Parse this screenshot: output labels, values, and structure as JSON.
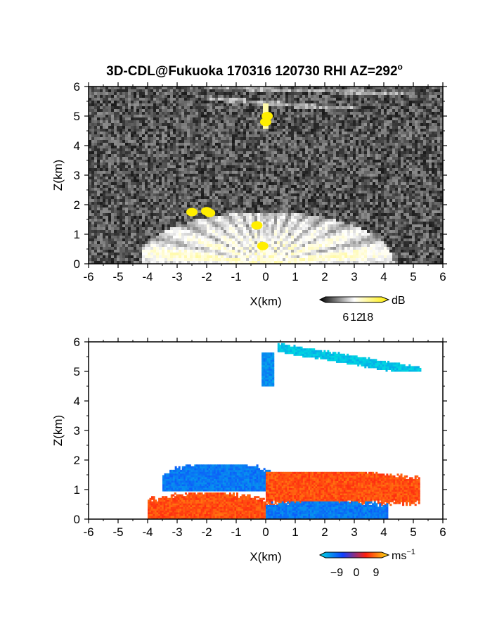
{
  "title_main": "3D-CDL@Fukuoka 170316 120730 RHI AZ=292",
  "title_sup": "o",
  "chart_data": [
    {
      "type": "heatmap",
      "field": "reflectivity",
      "title": "3D-CDL@Fukuoka 170316 120730 RHI AZ=292°",
      "xlabel": "X(km)",
      "ylabel": "Z(km)",
      "xlim": [
        -6,
        6
      ],
      "ylim": [
        0,
        6
      ],
      "x_ticks": [
        "-6",
        "-5",
        "-4",
        "-3",
        "-2",
        "-1",
        "0",
        "1",
        "2",
        "3",
        "4",
        "5",
        "6"
      ],
      "y_ticks": [
        "0",
        "1",
        "2",
        "3",
        "4",
        "5",
        "6"
      ],
      "colorbar": {
        "unit": "dB",
        "ticks": [
          "6",
          "12",
          "18"
        ],
        "range": [
          0,
          21
        ],
        "colors": [
          "#000000",
          "#ffffff",
          "#ffee00"
        ]
      },
      "features": [
        {
          "kind": "noise-background",
          "level_db": 2
        },
        {
          "kind": "fan-echo",
          "x_range": [
            -4.2,
            4.4
          ],
          "z_top": 1.65,
          "level_db": 12
        },
        {
          "kind": "strong-echo",
          "points": [
            [
              -2.5,
              1.75
            ],
            [
              -2.0,
              1.78
            ],
            [
              -1.9,
              1.72
            ],
            [
              0.0,
              4.8
            ],
            [
              0.05,
              5.0
            ],
            [
              -0.3,
              1.3
            ],
            [
              -0.1,
              0.6
            ]
          ],
          "level_db": 20
        },
        {
          "kind": "cloud-streak",
          "x_range": [
            -2.0,
            5.0
          ],
          "z": [
            5.2,
            6.0
          ],
          "level_db": 9
        }
      ]
    },
    {
      "type": "heatmap",
      "field": "doppler velocity",
      "xlabel": "X(km)",
      "ylabel": "Z(km)",
      "xlim": [
        -6,
        6
      ],
      "ylim": [
        0,
        6
      ],
      "x_ticks": [
        "-6",
        "-5",
        "-4",
        "-3",
        "-2",
        "-1",
        "0",
        "1",
        "2",
        "3",
        "4",
        "5",
        "6"
      ],
      "y_ticks": [
        "0",
        "1",
        "2",
        "3",
        "4",
        "5",
        "6"
      ],
      "colorbar": {
        "unit": "ms",
        "unit_exp": "−1",
        "ticks": [
          "−9",
          "0",
          "9"
        ],
        "range": [
          -12,
          12
        ],
        "colors": [
          "#00d8e0",
          "#1040ff",
          "#ff2010",
          "#ffe010"
        ]
      },
      "regions": [
        {
          "name": "upper-blue-layer",
          "x_range": [
            -3.5,
            0.2
          ],
          "z_range": [
            0.95,
            1.85
          ],
          "velocity": -7
        },
        {
          "name": "upper-red-layer",
          "x_range": [
            0.0,
            5.2
          ],
          "z_range": [
            0.4,
            1.55
          ],
          "velocity": 6
        },
        {
          "name": "lower-red-layer",
          "x_range": [
            -4.0,
            0.0
          ],
          "z_range": [
            0.0,
            0.85
          ],
          "velocity": 6
        },
        {
          "name": "lower-blue-layer",
          "x_range": [
            0.0,
            4.1
          ],
          "z_range": [
            0.0,
            0.55
          ],
          "velocity": -7
        },
        {
          "name": "cloud-base-blue",
          "x_range": [
            -0.2,
            0.3
          ],
          "z_range": [
            4.5,
            5.6
          ],
          "velocity": -8
        },
        {
          "name": "cloud-top-cyan",
          "x_range": [
            0.4,
            5.2
          ],
          "z_range": [
            5.0,
            6.0
          ],
          "velocity": -11
        }
      ]
    }
  ]
}
